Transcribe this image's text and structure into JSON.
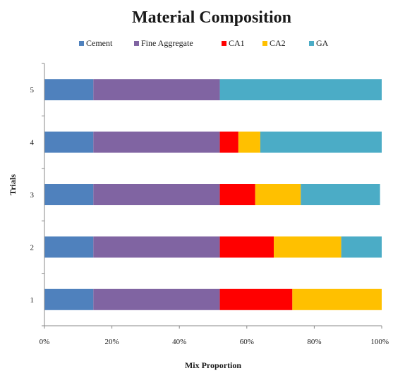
{
  "chart_data": {
    "type": "bar",
    "orientation": "horizontal",
    "stacked": "percent",
    "title": "Material Composition",
    "xlabel": "Mix Proportion",
    "ylabel": "Trials",
    "categories": [
      "1",
      "2",
      "3",
      "4",
      "5"
    ],
    "xlim": [
      0,
      100
    ],
    "x_ticks": [
      "0%",
      "20%",
      "40%",
      "60%",
      "80%",
      "100%"
    ],
    "legend_position": "top",
    "grid": false,
    "series": [
      {
        "name": "Cement",
        "color": "#4F81BD",
        "values": [
          14.5,
          14.5,
          14.5,
          14.5,
          14.5
        ]
      },
      {
        "name": "Fine Aggregate",
        "color": "#8064A2",
        "values": [
          37.5,
          37.5,
          37.5,
          37.5,
          37.5
        ]
      },
      {
        "name": "CA1",
        "color": "#FF0000",
        "values": [
          21.5,
          16,
          10.5,
          5.5,
          0
        ]
      },
      {
        "name": "CA2",
        "color": "#FFC000",
        "values": [
          26.5,
          20,
          13.5,
          6.5,
          0
        ]
      },
      {
        "name": "GA",
        "color": "#4BACC6",
        "values": [
          0,
          12,
          23.5,
          36,
          48
        ]
      }
    ]
  }
}
